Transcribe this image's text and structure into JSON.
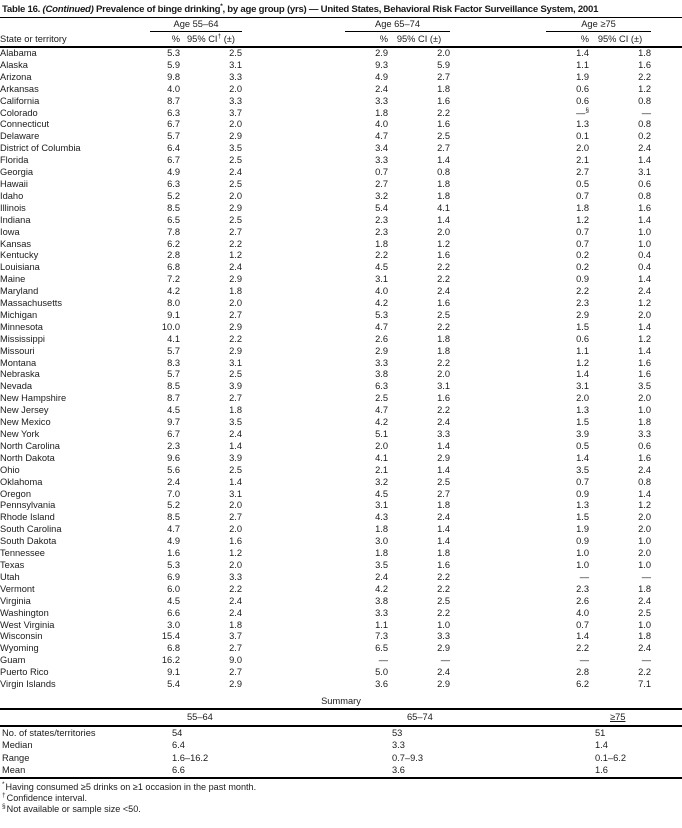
{
  "colors": {
    "background": "#ffffff",
    "text": "#1b1b1b",
    "line": "#000000"
  },
  "title": {
    "label": "Table 16.",
    "continued": "(Continued)",
    "text": "Prevalence of binge drinking",
    "footnote_marker": "*",
    "rest": ", by age group (yrs) — United States, Behavioral Risk Factor Surveillance System, 2001"
  },
  "table": {
    "row_header": "State or territory",
    "col_group_headers": [
      "Age 55–64",
      "Age 65–74",
      "Age ≥75"
    ],
    "pct_header": "%",
    "ci_label": "95% CI",
    "ci_dagger": "†",
    "ci_pm": " (±)",
    "rows": [
      {
        "state": "Alabama",
        "values": [
          "5.3",
          "2.5",
          "2.9",
          "2.0",
          "1.4",
          "1.8"
        ]
      },
      {
        "state": "Alaska",
        "values": [
          "5.9",
          "3.1",
          "9.3",
          "5.9",
          "1.1",
          "1.6"
        ]
      },
      {
        "state": "Arizona",
        "values": [
          "9.8",
          "3.3",
          "4.9",
          "2.7",
          "1.9",
          "2.2"
        ]
      },
      {
        "state": "Arkansas",
        "values": [
          "4.0",
          "2.0",
          "2.4",
          "1.8",
          "0.6",
          "1.2"
        ]
      },
      {
        "state": "California",
        "values": [
          "8.7",
          "3.3",
          "3.3",
          "1.6",
          "0.6",
          "0.8"
        ]
      },
      {
        "state": "Colorado",
        "values": [
          "6.3",
          "3.7",
          "1.8",
          "2.2",
          "—§",
          "—"
        ]
      },
      {
        "state": "Connecticut",
        "values": [
          "6.7",
          "2.0",
          "4.0",
          "1.6",
          "1.3",
          "0.8"
        ]
      },
      {
        "state": "Delaware",
        "values": [
          "5.7",
          "2.9",
          "4.7",
          "2.5",
          "0.1",
          "0.2"
        ]
      },
      {
        "state": "District of Columbia",
        "values": [
          "6.4",
          "3.5",
          "3.4",
          "2.7",
          "2.0",
          "2.4"
        ]
      },
      {
        "state": "Florida",
        "values": [
          "6.7",
          "2.5",
          "3.3",
          "1.4",
          "2.1",
          "1.4"
        ]
      },
      {
        "state": "Georgia",
        "values": [
          "4.9",
          "2.4",
          "0.7",
          "0.8",
          "2.7",
          "3.1"
        ]
      },
      {
        "state": "Hawaii",
        "values": [
          "6.3",
          "2.5",
          "2.7",
          "1.8",
          "0.5",
          "0.6"
        ]
      },
      {
        "state": "Idaho",
        "values": [
          "5.2",
          "2.0",
          "3.2",
          "1.8",
          "0.7",
          "0.8"
        ]
      },
      {
        "state": "Illinois",
        "values": [
          "8.5",
          "2.9",
          "5.4",
          "4.1",
          "1.8",
          "1.6"
        ]
      },
      {
        "state": "Indiana",
        "values": [
          "6.5",
          "2.5",
          "2.3",
          "1.4",
          "1.2",
          "1.4"
        ]
      },
      {
        "state": "Iowa",
        "values": [
          "7.8",
          "2.7",
          "2.3",
          "2.0",
          "0.7",
          "1.0"
        ]
      },
      {
        "state": "Kansas",
        "values": [
          "6.2",
          "2.2",
          "1.8",
          "1.2",
          "0.7",
          "1.0"
        ]
      },
      {
        "state": "Kentucky",
        "values": [
          "2.8",
          "1.2",
          "2.2",
          "1.6",
          "0.2",
          "0.4"
        ]
      },
      {
        "state": "Louisiana",
        "values": [
          "6.8",
          "2.4",
          "4.5",
          "2.2",
          "0.2",
          "0.4"
        ]
      },
      {
        "state": "Maine",
        "values": [
          "7.2",
          "2.9",
          "3.1",
          "2.2",
          "0.9",
          "1.4"
        ]
      },
      {
        "state": "Maryland",
        "values": [
          "4.2",
          "1.8",
          "4.0",
          "2.4",
          "2.2",
          "2.4"
        ]
      },
      {
        "state": "Massachusetts",
        "values": [
          "8.0",
          "2.0",
          "4.2",
          "1.6",
          "2.3",
          "1.2"
        ]
      },
      {
        "state": "Michigan",
        "values": [
          "9.1",
          "2.7",
          "5.3",
          "2.5",
          "2.9",
          "2.0"
        ]
      },
      {
        "state": "Minnesota",
        "values": [
          "10.0",
          "2.9",
          "4.7",
          "2.2",
          "1.5",
          "1.4"
        ]
      },
      {
        "state": "Mississippi",
        "values": [
          "4.1",
          "2.2",
          "2.6",
          "1.8",
          "0.6",
          "1.2"
        ]
      },
      {
        "state": "Missouri",
        "values": [
          "5.7",
          "2.9",
          "2.9",
          "1.8",
          "1.1",
          "1.4"
        ]
      },
      {
        "state": "Montana",
        "values": [
          "8.3",
          "3.1",
          "3.3",
          "2.2",
          "1.2",
          "1.6"
        ]
      },
      {
        "state": "Nebraska",
        "values": [
          "5.7",
          "2.5",
          "3.8",
          "2.0",
          "1.4",
          "1.6"
        ]
      },
      {
        "state": "Nevada",
        "values": [
          "8.5",
          "3.9",
          "6.3",
          "3.1",
          "3.1",
          "3.5"
        ]
      },
      {
        "state": "New Hampshire",
        "values": [
          "8.7",
          "2.7",
          "2.5",
          "1.6",
          "2.0",
          "2.0"
        ]
      },
      {
        "state": "New Jersey",
        "values": [
          "4.5",
          "1.8",
          "4.7",
          "2.2",
          "1.3",
          "1.0"
        ]
      },
      {
        "state": "New Mexico",
        "values": [
          "9.7",
          "3.5",
          "4.2",
          "2.4",
          "1.5",
          "1.8"
        ]
      },
      {
        "state": "New York",
        "values": [
          "6.7",
          "2.4",
          "5.1",
          "3.3",
          "3.9",
          "3.3"
        ]
      },
      {
        "state": "North Carolina",
        "values": [
          "2.3",
          "1.4",
          "2.0",
          "1.4",
          "0.5",
          "0.6"
        ]
      },
      {
        "state": "North Dakota",
        "values": [
          "9.6",
          "3.9",
          "4.1",
          "2.9",
          "1.4",
          "1.6"
        ]
      },
      {
        "state": "Ohio",
        "values": [
          "5.6",
          "2.5",
          "2.1",
          "1.4",
          "3.5",
          "2.4"
        ]
      },
      {
        "state": "Oklahoma",
        "values": [
          "2.4",
          "1.4",
          "3.2",
          "2.5",
          "0.7",
          "0.8"
        ]
      },
      {
        "state": "Oregon",
        "values": [
          "7.0",
          "3.1",
          "4.5",
          "2.7",
          "0.9",
          "1.4"
        ]
      },
      {
        "state": "Pennsylvania",
        "values": [
          "5.2",
          "2.0",
          "3.1",
          "1.8",
          "1.3",
          "1.2"
        ]
      },
      {
        "state": "Rhode Island",
        "values": [
          "8.5",
          "2.7",
          "4.3",
          "2.4",
          "1.5",
          "2.0"
        ]
      },
      {
        "state": "South Carolina",
        "values": [
          "4.7",
          "2.0",
          "1.8",
          "1.4",
          "1.9",
          "2.0"
        ]
      },
      {
        "state": "South Dakota",
        "values": [
          "4.9",
          "1.6",
          "3.0",
          "1.4",
          "0.9",
          "1.0"
        ]
      },
      {
        "state": "Tennessee",
        "values": [
          "1.6",
          "1.2",
          "1.8",
          "1.8",
          "1.0",
          "2.0"
        ]
      },
      {
        "state": "Texas",
        "values": [
          "5.3",
          "2.0",
          "3.5",
          "1.6",
          "1.0",
          "1.0"
        ]
      },
      {
        "state": "Utah",
        "values": [
          "6.9",
          "3.3",
          "2.4",
          "2.2",
          "—",
          "—"
        ]
      },
      {
        "state": "Vermont",
        "values": [
          "6.0",
          "2.2",
          "4.2",
          "2.2",
          "2.3",
          "1.8"
        ]
      },
      {
        "state": "Virginia",
        "values": [
          "4.5",
          "2.4",
          "3.8",
          "2.5",
          "2.6",
          "2.4"
        ]
      },
      {
        "state": "Washington",
        "values": [
          "6.6",
          "2.4",
          "3.3",
          "2.2",
          "4.0",
          "2.5"
        ]
      },
      {
        "state": "West Virginia",
        "values": [
          "3.0",
          "1.8",
          "1.1",
          "1.0",
          "0.7",
          "1.0"
        ]
      },
      {
        "state": "Wisconsin",
        "values": [
          "15.4",
          "3.7",
          "7.3",
          "3.3",
          "1.4",
          "1.8"
        ]
      },
      {
        "state": "Wyoming",
        "values": [
          "6.8",
          "2.7",
          "6.5",
          "2.9",
          "2.2",
          "2.4"
        ]
      },
      {
        "state": "Guam",
        "values": [
          "16.2",
          "9.0",
          "—",
          "—",
          "—",
          "—"
        ]
      },
      {
        "state": "Puerto Rico",
        "values": [
          "9.1",
          "2.7",
          "5.0",
          "2.4",
          "2.8",
          "2.2"
        ]
      },
      {
        "state": "Virgin Islands",
        "values": [
          "5.4",
          "2.9",
          "3.6",
          "2.9",
          "6.2",
          "7.1"
        ]
      }
    ]
  },
  "summary": {
    "heading": "Summary",
    "columns": [
      "55–64",
      "65–74",
      "≥75"
    ],
    "rows": [
      {
        "label": "No. of states/territories",
        "values": [
          "54",
          "53",
          "51"
        ]
      },
      {
        "label": "Median",
        "values": [
          "6.4",
          "3.3",
          "1.4"
        ]
      },
      {
        "label": "Range",
        "values": [
          "1.6–16.2",
          "0.7–9.3",
          "0.1–6.2"
        ]
      },
      {
        "label": "Mean",
        "values": [
          "6.6",
          "3.6",
          "1.6"
        ]
      }
    ]
  },
  "footnotes": [
    {
      "marker": "*",
      "text": "Having consumed ≥5 drinks on ≥1 occasion in the past month."
    },
    {
      "marker": "†",
      "text": "Confidence interval."
    },
    {
      "marker": "§",
      "text": "Not available or sample size <50."
    }
  ]
}
